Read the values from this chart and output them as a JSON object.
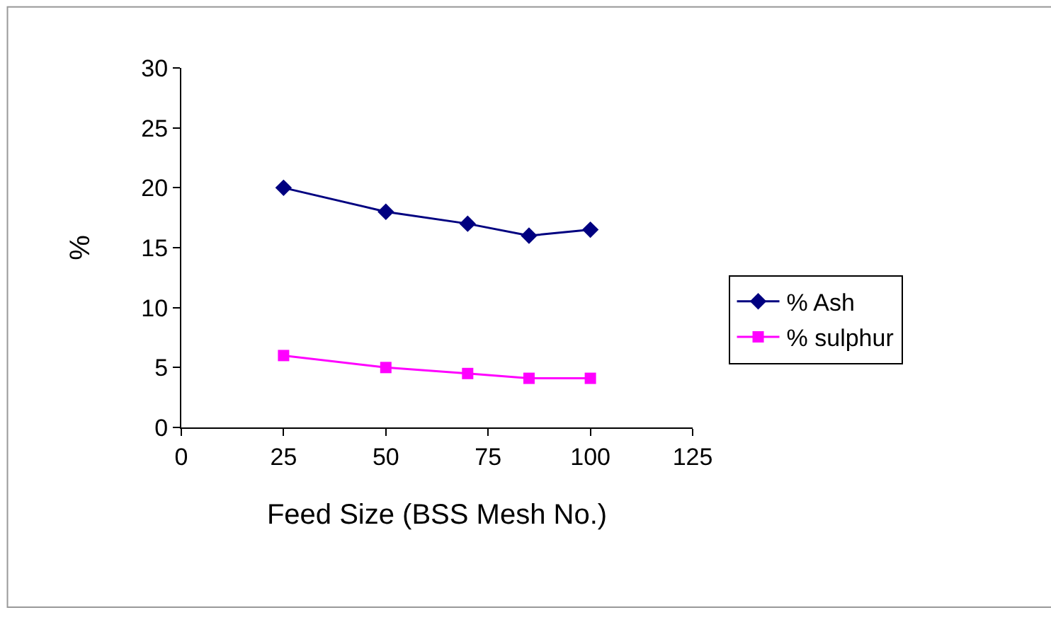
{
  "chart_data": {
    "type": "line",
    "xlabel": "Feed Size (BSS Mesh No.)",
    "ylabel": "%",
    "x": [
      25,
      50,
      70,
      85,
      100
    ],
    "series": [
      {
        "name": "% Ash",
        "color": "#000080",
        "marker": "diamond",
        "values": [
          20,
          18,
          17,
          16,
          16.5
        ]
      },
      {
        "name": "% sulphur",
        "color": "#ff00ff",
        "marker": "square",
        "values": [
          6,
          5,
          4.5,
          4.1,
          4.1
        ]
      }
    ],
    "xlim": [
      0,
      125
    ],
    "xticks": [
      0,
      25,
      50,
      75,
      100,
      125
    ],
    "ylim": [
      0,
      30
    ],
    "yticks": [
      0,
      5,
      10,
      15,
      20,
      25,
      30
    ],
    "grid": false,
    "legend": "right",
    "line_style": "solid"
  }
}
